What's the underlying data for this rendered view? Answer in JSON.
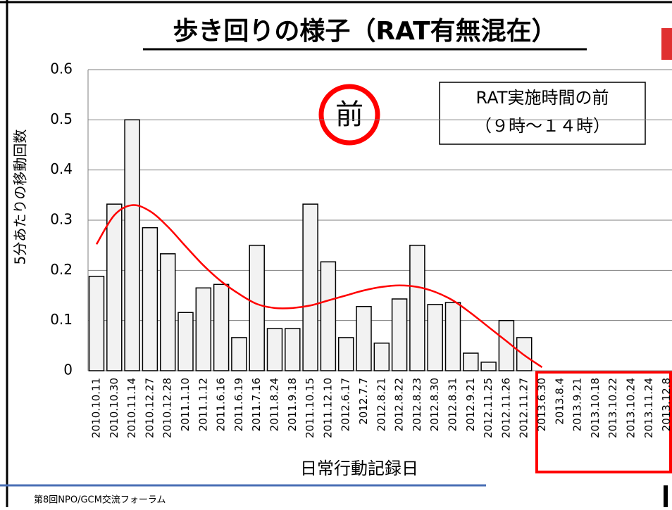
{
  "chart_data": {
    "type": "bar",
    "title": "歩き回りの様子（RAT有無混在）",
    "ylabel": "5分あたりの移動回数",
    "xlabel": "日常行動記録日",
    "annotations": [
      "前",
      "RAT実施時間の前",
      "（９時～１４時）"
    ],
    "footer": "第8回NPO/GCM交流フォーラム",
    "categories": [
      "2010.10.11",
      "2010.10.30",
      "2010.11.14",
      "2010.12.27",
      "2010.12.28",
      "2011.1.10",
      "2011.1.12",
      "2011.6.16",
      "2011.6.19",
      "2011.7.16",
      "2011.8.24",
      "2011.9.18",
      "2011.10.15",
      "2011.12.10",
      "2012.6.17",
      "2012.7.7",
      "2012.8.21",
      "2012.8.22",
      "2012.8.23",
      "2012.8.30",
      "2012.8.31",
      "2012.9.21",
      "2012.11.25",
      "2012.11.26",
      "2012.11.27",
      "2013.6.30",
      "2013.8.4",
      "2013.9.21",
      "2013.10.18",
      "2013.10.22",
      "2013.10.24",
      "2013.11.24",
      "2013.12.8"
    ],
    "values": [
      0.188,
      0.332,
      0.5,
      0.285,
      0.233,
      0.116,
      0.165,
      0.172,
      0.066,
      0.25,
      0.084,
      0.084,
      0.332,
      0.217,
      0.066,
      0.128,
      0.055,
      0.143,
      0.25,
      0.132,
      0.136,
      0.035,
      0.017,
      0.1,
      0.066,
      0,
      0,
      0,
      0,
      0,
      0,
      0,
      0
    ],
    "color": "#f2f2f2",
    "trendline": {
      "color": "#ff0000",
      "values": [
        0.252,
        0.31,
        0.33,
        0.318,
        0.287,
        0.248,
        0.21,
        0.178,
        0.153,
        0.133,
        0.125,
        0.125,
        0.13,
        0.14,
        0.15,
        0.16,
        0.167,
        0.17,
        0.167,
        0.157,
        0.14,
        0.115,
        0.087,
        0.059,
        0.031,
        0.007,
        null,
        null,
        null,
        null,
        null,
        null,
        null
      ]
    },
    "ylim": [
      0,
      0.6
    ],
    "yticks": [
      0,
      0.1,
      0.2,
      0.3,
      0.4,
      0.5,
      0.6
    ],
    "grid": true
  }
}
